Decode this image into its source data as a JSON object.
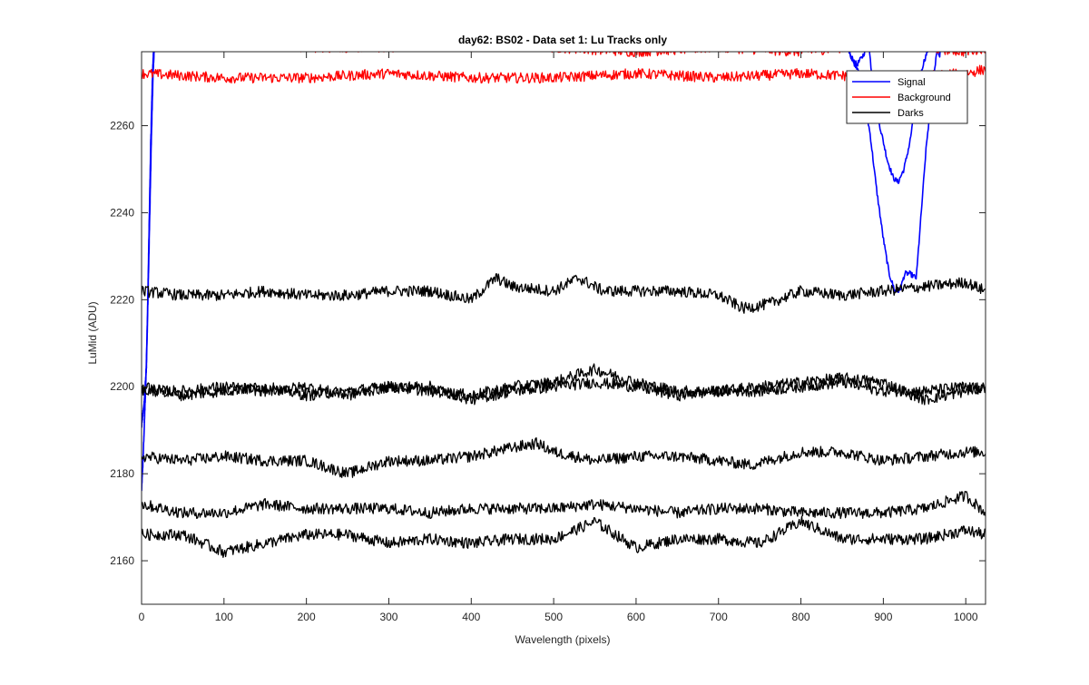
{
  "chart_data": {
    "type": "line",
    "title": "day62: BS02 - Data set 1: Lu Tracks only",
    "xlabel": "Wavelength (pixels)",
    "ylabel": "LuMid (ADU)",
    "xlim": [
      0,
      1024
    ],
    "ylim": [
      2150,
      2277
    ],
    "xticks": [
      0,
      100,
      200,
      300,
      400,
      500,
      600,
      700,
      800,
      900,
      1000
    ],
    "yticks": [
      2160,
      2180,
      2200,
      2220,
      2240,
      2260
    ],
    "grid": false,
    "legend": {
      "location": "top-right",
      "entries": [
        "Signal",
        "Background",
        "Darks"
      ]
    },
    "colors": {
      "Signal": "#0000ff",
      "Background": "#ff0000",
      "Darks": "#000000"
    },
    "series": [
      {
        "legend": "Signal",
        "description": "signal trace, left edge rising off scale",
        "x": [
          0,
          2,
          5,
          7,
          9,
          11,
          13,
          15
        ],
        "y": [
          2176,
          2184,
          2200,
          2215,
          2235,
          2255,
          2270,
          2280
        ]
      },
      {
        "legend": "Signal",
        "description": "signal trace, left edge rising off scale",
        "x": [
          0,
          3,
          6,
          8,
          10,
          12,
          14,
          16
        ],
        "y": [
          2191,
          2196,
          2205,
          2222,
          2240,
          2258,
          2272,
          2280
        ]
      },
      {
        "legend": "Signal",
        "description": "signal dip, upper",
        "x": [
          855,
          860,
          868,
          875,
          882,
          890,
          898,
          905,
          912,
          918,
          925,
          932,
          940,
          948,
          955,
          962,
          968,
          972
        ],
        "y": [
          2280,
          2276,
          2274,
          2276,
          2279,
          2265,
          2258,
          2252,
          2248,
          2247,
          2250,
          2256,
          2266,
          2274,
          2278,
          2280,
          2276,
          2280
        ]
      },
      {
        "legend": "Signal",
        "description": "signal dip, lower",
        "x": [
          855,
          862,
          870,
          877,
          884,
          892,
          900,
          907,
          914,
          920,
          926,
          932,
          940,
          946,
          952,
          958,
          964,
          968
        ],
        "y": [
          2280,
          2275,
          2273,
          2266,
          2258,
          2245,
          2234,
          2226,
          2222,
          2222,
          2226,
          2226,
          2225,
          2240,
          2255,
          2266,
          2276,
          2280
        ]
      },
      {
        "legend": "Background",
        "description": "background, upper",
        "x": [
          0,
          100,
          200,
          300,
          400,
          500,
          600,
          700,
          800,
          900,
          1000,
          1024
        ],
        "y": [
          2278,
          2279,
          2278,
          2278,
          2279,
          2278,
          2277,
          2278,
          2277,
          2279,
          2277,
          2278
        ]
      },
      {
        "legend": "Background",
        "description": "background, lower",
        "x": [
          0,
          100,
          200,
          300,
          400,
          500,
          600,
          700,
          800,
          900,
          1000,
          1024
        ],
        "y": [
          2272,
          2271,
          2271,
          2272,
          2271,
          2271,
          2272,
          2271,
          2272,
          2271,
          2272,
          2273
        ]
      },
      {
        "legend": "Darks",
        "description": "dark frame at ~2222",
        "x": [
          0,
          50,
          100,
          150,
          200,
          250,
          300,
          350,
          400,
          430,
          450,
          500,
          530,
          560,
          600,
          650,
          700,
          730,
          760,
          800,
          850,
          900,
          950,
          1000,
          1024
        ],
        "y": [
          2222,
          2221,
          2221,
          2222,
          2221,
          2221,
          2222,
          2222,
          2220,
          2225,
          2223,
          2222,
          2225,
          2222,
          2222,
          2222,
          2221,
          2218,
          2219,
          2222,
          2221,
          2222,
          2223,
          2224,
          2222
        ]
      },
      {
        "legend": "Darks",
        "description": "dark frame at ~2200 (a)",
        "x": [
          0,
          50,
          100,
          150,
          200,
          250,
          300,
          350,
          400,
          450,
          500,
          550,
          600,
          650,
          700,
          750,
          800,
          850,
          900,
          950,
          1000,
          1024
        ],
        "y": [
          2200,
          2198,
          2199,
          2200,
          2198,
          2199,
          2200,
          2199,
          2198,
          2200,
          2201,
          2204,
          2201,
          2199,
          2199,
          2200,
          2201,
          2202,
          2201,
          2197,
          2199,
          2200
        ]
      },
      {
        "legend": "Darks",
        "description": "dark frame at ~2200 (b)",
        "x": [
          0,
          50,
          100,
          150,
          200,
          250,
          300,
          350,
          400,
          450,
          500,
          550,
          600,
          650,
          700,
          750,
          800,
          850,
          900,
          950,
          1000,
          1024
        ],
        "y": [
          2199,
          2199,
          2200,
          2199,
          2200,
          2198,
          2200,
          2200,
          2197,
          2199,
          2200,
          2201,
          2200,
          2198,
          2199,
          2199,
          2200,
          2201,
          2199,
          2199,
          2200,
          2199
        ]
      },
      {
        "legend": "Darks",
        "description": "dark frame at ~2184",
        "x": [
          0,
          50,
          100,
          150,
          200,
          250,
          300,
          350,
          400,
          450,
          480,
          500,
          550,
          600,
          650,
          700,
          740,
          800,
          850,
          900,
          950,
          1000,
          1024
        ],
        "y": [
          2184,
          2183,
          2184,
          2183,
          2183,
          2180,
          2183,
          2183,
          2184,
          2186,
          2187,
          2185,
          2183,
          2184,
          2184,
          2183,
          2182,
          2185,
          2185,
          2183,
          2184,
          2185,
          2185
        ]
      },
      {
        "legend": "Darks",
        "description": "dark frame at ~2172",
        "x": [
          0,
          50,
          100,
          150,
          200,
          250,
          300,
          350,
          400,
          450,
          500,
          550,
          600,
          650,
          700,
          750,
          800,
          850,
          900,
          950,
          1000,
          1024
        ],
        "y": [
          2173,
          2171,
          2171,
          2173,
          2172,
          2172,
          2172,
          2171,
          2172,
          2172,
          2172,
          2173,
          2172,
          2171,
          2172,
          2172,
          2171,
          2171,
          2171,
          2172,
          2175,
          2171
        ]
      },
      {
        "legend": "Darks",
        "description": "dark frame at ~2165",
        "x": [
          0,
          50,
          100,
          150,
          200,
          250,
          300,
          350,
          400,
          450,
          500,
          550,
          600,
          650,
          700,
          750,
          800,
          850,
          900,
          950,
          1000,
          1024
        ],
        "y": [
          2166,
          2166,
          2162,
          2164,
          2166,
          2166,
          2164,
          2165,
          2164,
          2165,
          2165,
          2169,
          2163,
          2165,
          2165,
          2164,
          2169,
          2165,
          2165,
          2165,
          2167,
          2166
        ]
      }
    ]
  }
}
